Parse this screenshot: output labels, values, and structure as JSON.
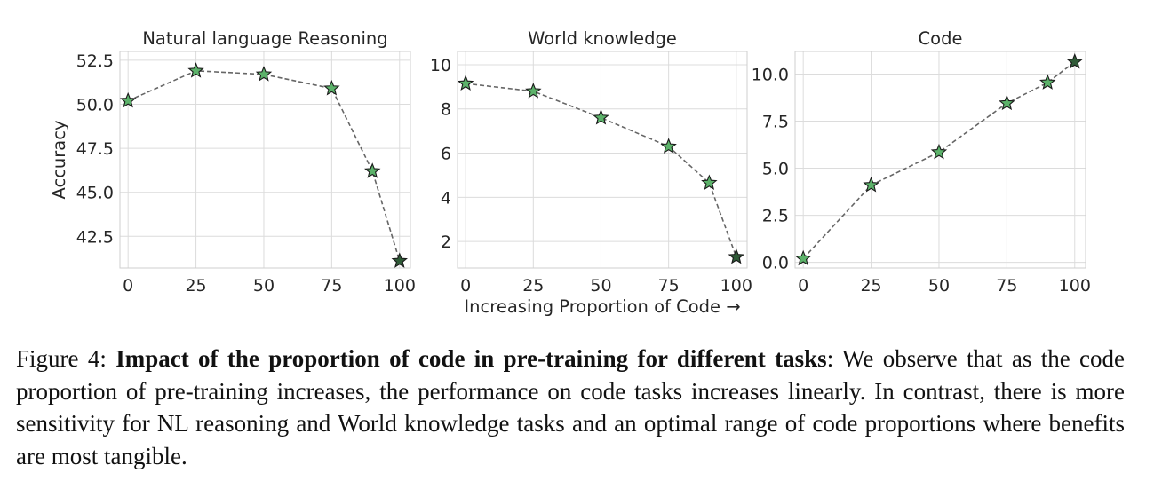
{
  "chart_data": [
    {
      "type": "line",
      "title": "Natural language Reasoning",
      "ylabel": "Accuracy",
      "xlabel": "",
      "x": [
        0,
        25,
        50,
        75,
        90,
        100
      ],
      "values": [
        50.2,
        51.9,
        51.7,
        50.9,
        46.2,
        41.1
      ],
      "xlim": [
        -3,
        104
      ],
      "ylim": [
        40.7,
        53.0
      ],
      "xticks": [
        "0",
        "25",
        "50",
        "75",
        "100"
      ],
      "xtick_values": [
        0,
        25,
        50,
        75,
        100
      ],
      "yticks": [
        "42.5",
        "45.0",
        "47.5",
        "50.0",
        "52.5"
      ],
      "ytick_values": [
        42.5,
        45.0,
        47.5,
        50.0,
        52.5
      ],
      "grid": true,
      "marker": "star",
      "line_style": "dashed",
      "colors": {
        "marker_fill": "#5cb26a",
        "marker_last": "#2f5a37",
        "line": "#666666",
        "grid": "#dcdcdc",
        "axes": "#cfcfcf"
      }
    },
    {
      "type": "line",
      "title": "World knowledge",
      "ylabel": "",
      "xlabel": "Increasing Proportion of Code →",
      "x": [
        0,
        25,
        50,
        75,
        90,
        100
      ],
      "values": [
        9.15,
        8.8,
        7.6,
        6.3,
        4.65,
        1.3
      ],
      "xlim": [
        -3,
        104
      ],
      "ylim": [
        0.8,
        10.6
      ],
      "xticks": [
        "0",
        "25",
        "50",
        "75",
        "100"
      ],
      "xtick_values": [
        0,
        25,
        50,
        75,
        100
      ],
      "yticks": [
        "2",
        "4",
        "6",
        "8",
        "10"
      ],
      "ytick_values": [
        2,
        4,
        6,
        8,
        10
      ],
      "grid": true,
      "marker": "star",
      "line_style": "dashed",
      "colors": {
        "marker_fill": "#5cb26a",
        "marker_last": "#2f5a37",
        "line": "#666666",
        "grid": "#dcdcdc",
        "axes": "#cfcfcf"
      }
    },
    {
      "type": "line",
      "title": "Code",
      "ylabel": "",
      "xlabel": "",
      "x": [
        0,
        25,
        50,
        75,
        90,
        100
      ],
      "values": [
        0.2,
        4.1,
        5.85,
        8.45,
        9.55,
        10.65
      ],
      "xlim": [
        -3,
        104
      ],
      "ylim": [
        -0.3,
        11.2
      ],
      "xticks": [
        "0",
        "25",
        "50",
        "75",
        "100"
      ],
      "xtick_values": [
        0,
        25,
        50,
        75,
        100
      ],
      "yticks": [
        "0.0",
        "2.5",
        "5.0",
        "7.5",
        "10.0"
      ],
      "ytick_values": [
        0.0,
        2.5,
        5.0,
        7.5,
        10.0
      ],
      "grid": true,
      "marker": "star",
      "line_style": "dashed",
      "colors": {
        "marker_fill": "#5cb26a",
        "marker_last": "#2f5a37",
        "line": "#666666",
        "grid": "#dcdcdc",
        "axes": "#cfcfcf"
      }
    }
  ],
  "caption": {
    "label": "Figure 4: ",
    "bold": "Impact of the proportion of code in pre-training for different tasks",
    "text": ": We observe that as the code proportion of pre-training increases, the performance on code tasks increases linearly. In contrast, there is more sensitivity for NL reasoning and World knowledge tasks and an optimal range of code proportions where benefits are most tangible."
  }
}
